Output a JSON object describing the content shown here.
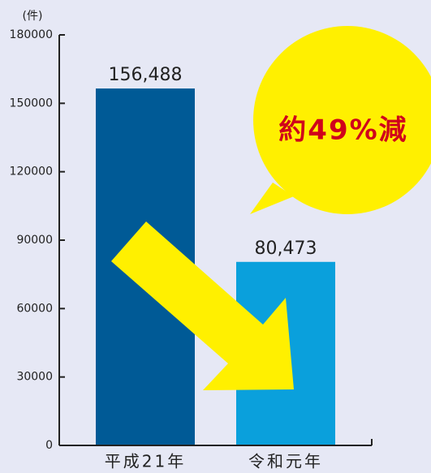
{
  "chart_data": {
    "type": "bar",
    "y_unit_label": "(件)",
    "categories": [
      "平成21年",
      "令和元年"
    ],
    "values": [
      156488,
      80473
    ],
    "value_labels": [
      "156,488",
      "80,473"
    ],
    "colors": [
      "#005a96",
      "#0aa0dc"
    ],
    "ylim": [
      0,
      180000
    ],
    "yticks": [
      0,
      30000,
      60000,
      90000,
      120000,
      150000,
      180000
    ],
    "annotation": "約49%減",
    "annotation_color": "#d0021b",
    "highlight_color": "#fff000",
    "grid": false
  }
}
